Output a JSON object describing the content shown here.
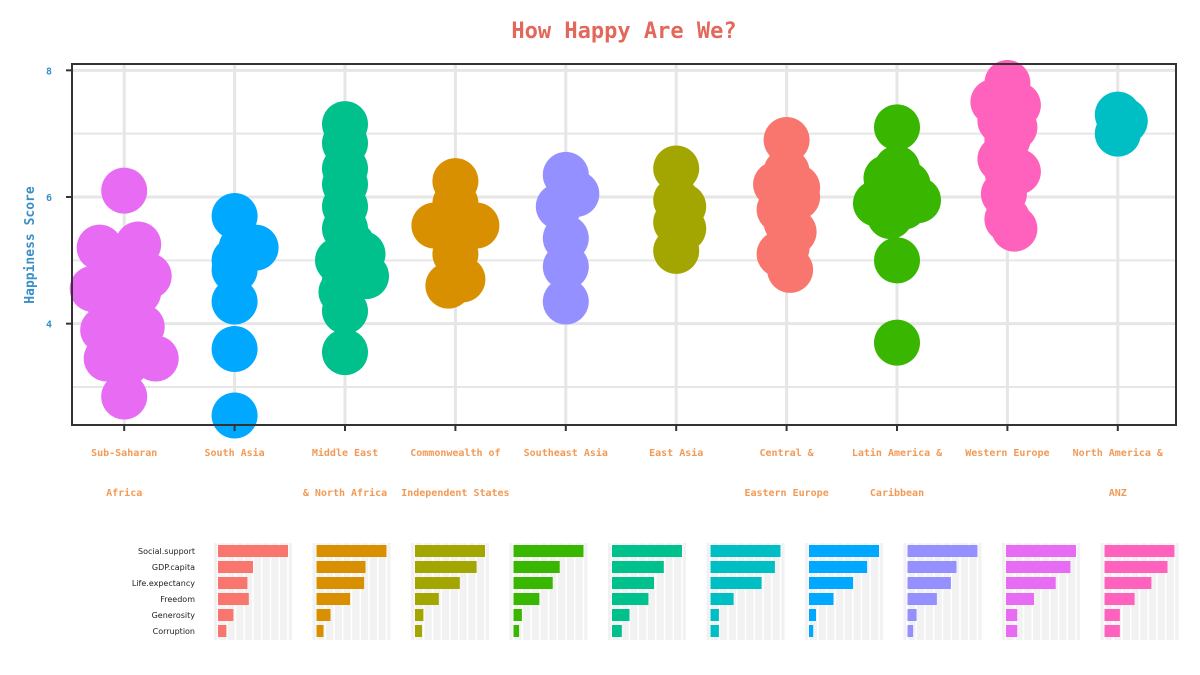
{
  "chart_data": [
    {
      "type": "scatter",
      "title": "How Happy Are We?",
      "xlabel": "",
      "ylabel": "Happiness Score",
      "ylim": [
        2.4,
        8.1
      ],
      "yticks": [
        4,
        6,
        8
      ],
      "grid": true,
      "categories": [
        {
          "lines": [
            "Sub-Saharan",
            "Africa"
          ],
          "color": "#e76bf3"
        },
        {
          "lines": [
            "South Asia",
            ""
          ],
          "color": "#00a9ff"
        },
        {
          "lines": [
            "Middle East",
            "&  North Africa"
          ],
          "color": "#00c08b"
        },
        {
          "lines": [
            "Commonwealth of",
            "Independent States"
          ],
          "color": "#d89000"
        },
        {
          "lines": [
            "Southeast Asia",
            ""
          ],
          "color": "#9590ff"
        },
        {
          "lines": [
            "East Asia",
            ""
          ],
          "color": "#a3a500"
        },
        {
          "lines": [
            "Central &",
            "Eastern Europe"
          ],
          "color": "#f8766d"
        },
        {
          "lines": [
            "Latin America &",
            "Caribbean"
          ],
          "color": "#39b600"
        },
        {
          "lines": [
            "Western Europe",
            ""
          ],
          "color": "#ff62bc"
        },
        {
          "lines": [
            "North America &",
            "ANZ"
          ],
          "color": "#00bfc4"
        }
      ],
      "series": [
        {
          "points": [
            [
              0.0,
              6.1
            ],
            [
              -0.35,
              5.2
            ],
            [
              0.2,
              5.25
            ],
            [
              -0.15,
              4.95
            ],
            [
              0.1,
              4.9
            ],
            [
              -0.25,
              4.7
            ],
            [
              0.35,
              4.75
            ],
            [
              0.0,
              4.6
            ],
            [
              -0.45,
              4.55
            ],
            [
              0.2,
              4.5
            ],
            [
              -0.2,
              4.3
            ],
            [
              0.1,
              4.2
            ],
            [
              -0.05,
              4.05
            ],
            [
              0.25,
              3.95
            ],
            [
              -0.3,
              3.9
            ],
            [
              0.1,
              3.8
            ],
            [
              -0.15,
              3.6
            ],
            [
              0.2,
              3.55
            ],
            [
              -0.25,
              3.45
            ],
            [
              0.45,
              3.45
            ],
            [
              0.05,
              3.4
            ],
            [
              0.0,
              2.85
            ]
          ]
        },
        {
          "points": [
            [
              0.0,
              5.7
            ],
            [
              0.1,
              5.2
            ],
            [
              0.3,
              5.2
            ],
            [
              0.0,
              5.0
            ],
            [
              0.0,
              4.85
            ],
            [
              0.0,
              4.35
            ],
            [
              0.0,
              3.6
            ],
            [
              0.0,
              2.55
            ]
          ]
        },
        {
          "points": [
            [
              0.0,
              7.15
            ],
            [
              0.0,
              6.85
            ],
            [
              0.0,
              6.45
            ],
            [
              0.0,
              6.2
            ],
            [
              0.0,
              5.85
            ],
            [
              0.0,
              5.5
            ],
            [
              0.1,
              5.25
            ],
            [
              0.25,
              5.1
            ],
            [
              -0.1,
              5.0
            ],
            [
              0.2,
              4.85
            ],
            [
              0.0,
              4.7
            ],
            [
              0.3,
              4.75
            ],
            [
              -0.05,
              4.5
            ],
            [
              0.0,
              4.2
            ],
            [
              0.0,
              3.55
            ]
          ]
        },
        {
          "points": [
            [
              0.0,
              6.25
            ],
            [
              0.0,
              5.9
            ],
            [
              -0.3,
              5.55
            ],
            [
              0.3,
              5.55
            ],
            [
              0.0,
              5.45
            ],
            [
              0.0,
              5.1
            ],
            [
              0.1,
              4.7
            ],
            [
              -0.1,
              4.6
            ]
          ]
        },
        {
          "points": [
            [
              0.0,
              6.35
            ],
            [
              0.15,
              6.05
            ],
            [
              -0.1,
              5.85
            ],
            [
              0.0,
              5.35
            ],
            [
              0.0,
              4.9
            ],
            [
              0.0,
              4.35
            ]
          ]
        },
        {
          "points": [
            [
              0.0,
              6.45
            ],
            [
              0.0,
              5.95
            ],
            [
              0.1,
              5.85
            ],
            [
              0.0,
              5.6
            ],
            [
              0.1,
              5.5
            ],
            [
              0.0,
              5.15
            ]
          ]
        },
        {
          "points": [
            [
              0.0,
              6.9
            ],
            [
              0.0,
              6.4
            ],
            [
              -0.15,
              6.2
            ],
            [
              0.15,
              6.15
            ],
            [
              0.0,
              5.95
            ],
            [
              0.15,
              6.0
            ],
            [
              -0.1,
              5.8
            ],
            [
              0.0,
              5.6
            ],
            [
              0.1,
              5.45
            ],
            [
              0.0,
              5.2
            ],
            [
              -0.1,
              5.1
            ],
            [
              0.05,
              4.85
            ]
          ]
        },
        {
          "points": [
            [
              0.0,
              7.1
            ],
            [
              0.0,
              6.45
            ],
            [
              -0.15,
              6.3
            ],
            [
              0.15,
              6.2
            ],
            [
              0.0,
              6.05
            ],
            [
              0.3,
              5.95
            ],
            [
              -0.3,
              5.9
            ],
            [
              0.1,
              5.85
            ],
            [
              -0.1,
              5.7
            ],
            [
              0.0,
              5.0
            ],
            [
              0.0,
              3.7
            ]
          ]
        },
        {
          "points": [
            [
              0.0,
              7.8
            ],
            [
              -0.2,
              7.5
            ],
            [
              0.15,
              7.45
            ],
            [
              -0.1,
              7.2
            ],
            [
              0.1,
              7.1
            ],
            [
              0.0,
              6.9
            ],
            [
              -0.1,
              6.6
            ],
            [
              0.0,
              6.4
            ],
            [
              0.15,
              6.4
            ],
            [
              -0.05,
              6.05
            ],
            [
              0.0,
              5.65
            ],
            [
              0.1,
              5.5
            ]
          ]
        },
        {
          "points": [
            [
              0.0,
              7.3
            ],
            [
              0.1,
              7.2
            ],
            [
              0.0,
              7.0
            ]
          ]
        }
      ]
    },
    {
      "type": "bar",
      "orientation": "horizontal",
      "factors": [
        "Social.support",
        "GDP.capita",
        "Life.expectancy",
        "Freedom",
        "Generosity",
        "Corruption"
      ],
      "xlim": [
        0,
        1
      ],
      "panels": [
        {
          "color": "#f8766d",
          "values": [
            1.0,
            0.5,
            0.42,
            0.44,
            0.22,
            0.12
          ]
        },
        {
          "color": "#d89000",
          "values": [
            1.0,
            0.7,
            0.68,
            0.48,
            0.2,
            0.1
          ]
        },
        {
          "color": "#a3a500",
          "values": [
            1.0,
            0.88,
            0.64,
            0.34,
            0.12,
            0.1
          ]
        },
        {
          "color": "#39b600",
          "values": [
            1.0,
            0.66,
            0.56,
            0.37,
            0.12,
            0.08
          ]
        },
        {
          "color": "#00c08b",
          "values": [
            1.0,
            0.74,
            0.6,
            0.52,
            0.25,
            0.14
          ]
        },
        {
          "color": "#00bfc4",
          "values": [
            1.0,
            0.92,
            0.73,
            0.33,
            0.12,
            0.12
          ]
        },
        {
          "color": "#00a9ff",
          "values": [
            1.0,
            0.83,
            0.63,
            0.35,
            0.1,
            0.06
          ]
        },
        {
          "color": "#9590ff",
          "values": [
            1.0,
            0.7,
            0.62,
            0.42,
            0.13,
            0.08
          ]
        },
        {
          "color": "#e76bf3",
          "values": [
            1.0,
            0.92,
            0.71,
            0.4,
            0.16,
            0.16
          ]
        },
        {
          "color": "#ff62bc",
          "values": [
            1.0,
            0.9,
            0.67,
            0.43,
            0.22,
            0.22
          ]
        }
      ]
    }
  ]
}
